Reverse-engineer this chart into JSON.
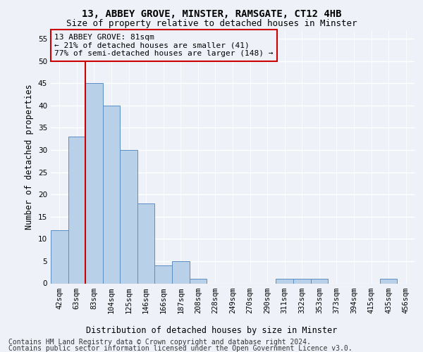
{
  "title": "13, ABBEY GROVE, MINSTER, RAMSGATE, CT12 4HB",
  "subtitle": "Size of property relative to detached houses in Minster",
  "xlabel": "Distribution of detached houses by size in Minster",
  "ylabel": "Number of detached properties",
  "categories": [
    "42sqm",
    "63sqm",
    "83sqm",
    "104sqm",
    "125sqm",
    "146sqm",
    "166sqm",
    "187sqm",
    "208sqm",
    "228sqm",
    "249sqm",
    "270sqm",
    "290sqm",
    "311sqm",
    "332sqm",
    "353sqm",
    "373sqm",
    "394sqm",
    "415sqm",
    "435sqm",
    "456sqm"
  ],
  "values": [
    12,
    33,
    45,
    40,
    30,
    18,
    4,
    5,
    1,
    0,
    0,
    0,
    0,
    1,
    1,
    1,
    0,
    0,
    0,
    1,
    0
  ],
  "bar_color": "#b8d0e8",
  "bar_edge_color": "#5b8ec4",
  "vline_x_index": 2,
  "vline_color": "#cc0000",
  "ann_line1": "13 ABBEY GROVE: 81sqm",
  "ann_line2": "← 21% of detached houses are smaller (41)",
  "ann_line3": "77% of semi-detached houses are larger (148) →",
  "annotation_box_color": "#cc0000",
  "ylim": [
    0,
    57
  ],
  "yticks": [
    0,
    5,
    10,
    15,
    20,
    25,
    30,
    35,
    40,
    45,
    50,
    55
  ],
  "footer_line1": "Contains HM Land Registry data © Crown copyright and database right 2024.",
  "footer_line2": "Contains public sector information licensed under the Open Government Licence v3.0.",
  "background_color": "#eef2f8",
  "grid_color": "#ffffff",
  "title_fontsize": 10,
  "subtitle_fontsize": 9,
  "axis_label_fontsize": 8.5,
  "tick_fontsize": 7.5,
  "ann_fontsize": 8,
  "footer_fontsize": 7
}
